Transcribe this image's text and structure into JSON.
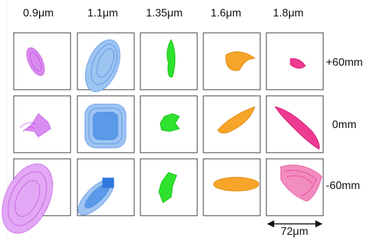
{
  "columns": [
    "0.9μm",
    "1.1μm",
    "1.35μm",
    "1.6μm",
    "1.8μm"
  ],
  "rows": [
    "+60mm",
    "0mm",
    "-60mm"
  ],
  "scale_bar": "72μm"
}
